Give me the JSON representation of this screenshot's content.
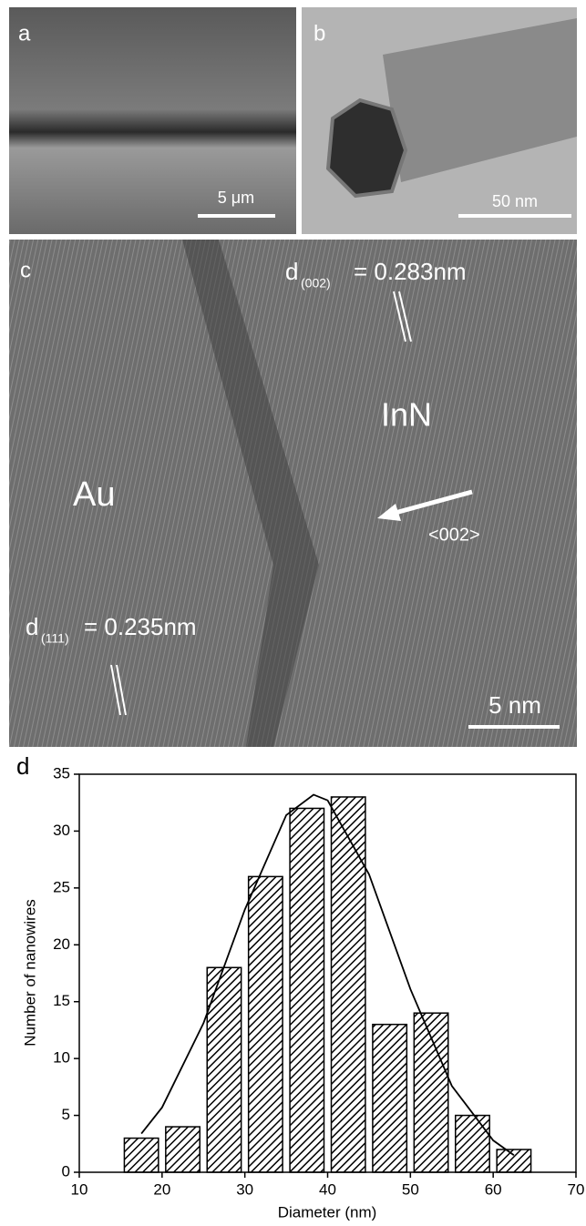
{
  "panels": [
    {
      "label": "a",
      "scale_bar": "5 μm"
    },
    {
      "label": "b",
      "scale_bar": "50 nm"
    },
    {
      "label": "c",
      "scale_bar": "5 nm",
      "annotations": {
        "innd_symbol": "d",
        "innd_index": "(002)",
        "innd_value": "= 0.283nm",
        "inn": "InN",
        "au": "Au",
        "direction": "<002>",
        "aud_symbol": "d",
        "aud_index": "(111)",
        "aud_value": "= 0.235nm"
      }
    }
  ],
  "chart_data": {
    "type": "histogram",
    "panel_label": "d",
    "x_label": "Diameter (nm)",
    "y_label": "Number of nanowires",
    "bins": [
      15,
      20,
      25,
      30,
      35,
      40,
      45,
      50,
      55,
      60,
      65
    ],
    "values": [
      3,
      4,
      18,
      26,
      32,
      33,
      13,
      14,
      5,
      2
    ],
    "color": "#000000",
    "fit": {
      "x": [
        17.5,
        20,
        25,
        30,
        35,
        38.3,
        40,
        45,
        50,
        55,
        60,
        62.5
      ],
      "values": [
        3.4,
        5.7,
        13.1,
        23.1,
        31.4,
        33.2,
        32.7,
        26.2,
        16.1,
        7.6,
        2.8,
        1.5
      ]
    },
    "xlim": [
      10,
      70
    ],
    "xticks": [
      10,
      20,
      30,
      40,
      50,
      60,
      70
    ],
    "ylim": [
      0,
      35
    ],
    "yticks": [
      0,
      5,
      10,
      15,
      20,
      25,
      30,
      35
    ]
  }
}
